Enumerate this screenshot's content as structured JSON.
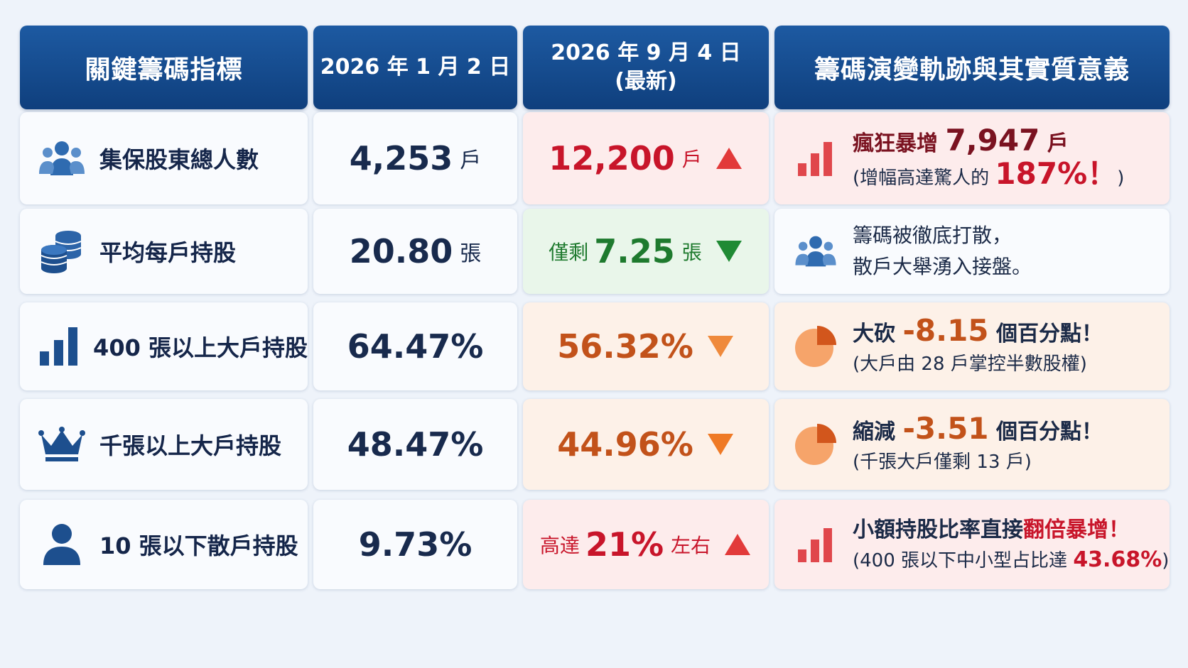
{
  "header": {
    "col1": "關鍵籌碼指標",
    "col2": "2026 年 1 月 2 日",
    "col3_line1": "2026 年 9 月 4 日",
    "col3_line2": "(最新)",
    "col4": "籌碼演變軌跡與其實質意義"
  },
  "colors": {
    "header_bg": "#1d5aa2",
    "up_red": "#c8152a",
    "down_green": "#1e7a2e",
    "down_orange": "#c2521a"
  },
  "rows": [
    {
      "icon": "people-group-icon",
      "label": "集保股東總人數",
      "old_value": "4,253",
      "old_unit": "戶",
      "new_value": "12,200",
      "new_unit": "戶",
      "direction": "up",
      "meaning_icon": "bar-chart-icon",
      "meaning_l1_pre": "瘋狂暴增 ",
      "meaning_l1_num": "7,947",
      "meaning_l1_post": " 戶",
      "meaning_l2_pre": "(增幅高達驚人的 ",
      "meaning_l2_num": "187%！",
      "meaning_l2_post": ")"
    },
    {
      "icon": "coin-stack-icon",
      "label": "平均每戶持股",
      "old_value": "20.80",
      "old_unit": "張",
      "new_pre": "僅剩",
      "new_value": "7.25",
      "new_unit": "張",
      "direction": "down",
      "meaning_icon": "people-group-icon",
      "meaning_l1": "籌碼被徹底打散，",
      "meaning_l2": "散戶大舉湧入接盤。"
    },
    {
      "icon": "bar-chart-icon",
      "label": "400 張以上大戶持股",
      "old_value": "64.47%",
      "new_value": "56.32%",
      "direction": "down",
      "meaning_icon": "pie-chart-icon",
      "meaning_l1_pre": "大砍 ",
      "meaning_l1_num": "-8.15",
      "meaning_l1_post": " 個百分點！",
      "meaning_l2": "(大戶由 28 戶掌控半數股權)"
    },
    {
      "icon": "crown-icon",
      "label": "千張以上大戶持股",
      "old_value": "48.47%",
      "new_value": "44.96%",
      "direction": "down",
      "meaning_icon": "pie-chart-icon",
      "meaning_l1_pre": "縮減 ",
      "meaning_l1_num": "-3.51",
      "meaning_l1_post": " 個百分點！",
      "meaning_l2": "(千張大戶僅剩 13 戶)"
    },
    {
      "icon": "person-icon",
      "label": "10 張以下散戶持股",
      "old_value": "9.73%",
      "new_pre": "高達",
      "new_value": "21%",
      "new_unit": "左右",
      "direction": "up",
      "meaning_icon": "bar-chart-icon",
      "meaning_l1_pre": "小額持股比率直接",
      "meaning_l1_emph": "翻倍暴增！",
      "meaning_l2_pre": "(400 張以下中小型占比達 ",
      "meaning_l2_num": "43.68%",
      "meaning_l2_post": ")"
    }
  ]
}
